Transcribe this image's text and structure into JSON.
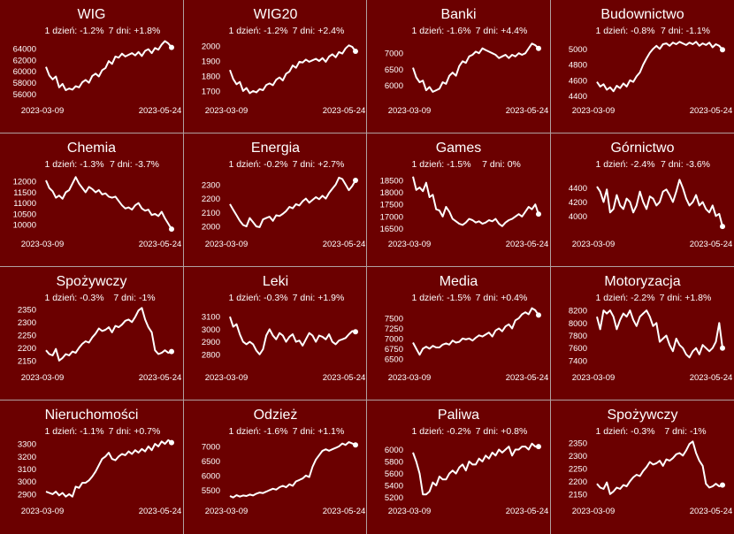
{
  "chart_data": [
    {
      "type": "line",
      "title": "WIG",
      "day_change": "1 dzień: -1.2%",
      "week_change": "7 dni: +1.8%",
      "xlabel_start": "2023-03-09",
      "xlabel_end": "2023-05-24",
      "ylim": [
        55000,
        66000
      ],
      "yticks": [
        "64000",
        "62000",
        "60000",
        "58000",
        "56000"
      ],
      "ytick_values": [
        64000,
        62000,
        60000,
        58000,
        56000
      ],
      "values": [
        60800,
        59300,
        58600,
        59100,
        57200,
        57800,
        56700,
        57000,
        56800,
        57400,
        57200,
        58100,
        58500,
        58000,
        59200,
        59600,
        59100,
        60200,
        60600,
        61800,
        61300,
        62600,
        62400,
        63100,
        62600,
        62900,
        63200,
        62800,
        63400,
        62700,
        63600,
        63900,
        63200,
        64100,
        63800,
        64700,
        65300,
        64900,
        64200
      ]
    },
    {
      "type": "line",
      "title": "WIG20",
      "day_change": "1 dzień: -1.2%",
      "week_change": "7 dni: +2.4%",
      "xlabel_start": "2023-03-09",
      "xlabel_end": "2023-05-24",
      "ylim": [
        1640,
        2060
      ],
      "yticks": [
        "2000",
        "1900",
        "1800",
        "1700"
      ],
      "ytick_values": [
        2000,
        1900,
        1800,
        1700
      ],
      "values": [
        1840,
        1780,
        1745,
        1760,
        1700,
        1720,
        1685,
        1700,
        1690,
        1712,
        1705,
        1740,
        1750,
        1738,
        1775,
        1790,
        1770,
        1815,
        1830,
        1870,
        1855,
        1895,
        1890,
        1910,
        1895,
        1905,
        1915,
        1900,
        1920,
        1895,
        1930,
        1945,
        1925,
        1960,
        1950,
        1985,
        2005,
        1995,
        1965
      ]
    },
    {
      "type": "line",
      "title": "Banki",
      "day_change": "1 dzień: -1.6%",
      "week_change": "7 dni: +4.4%",
      "xlabel_start": "2023-03-09",
      "xlabel_end": "2023-05-24",
      "ylim": [
        5550,
        7500
      ],
      "yticks": [
        "7000",
        "6500",
        "6000"
      ],
      "ytick_values": [
        7000,
        6500,
        6000
      ],
      "values": [
        6550,
        6250,
        6100,
        6150,
        5850,
        5950,
        5800,
        5850,
        5900,
        6100,
        6050,
        6300,
        6400,
        6300,
        6600,
        6750,
        6700,
        6900,
        6950,
        7050,
        7000,
        7150,
        7100,
        7050,
        7000,
        6950,
        6850,
        6900,
        6950,
        6850,
        6950,
        6900,
        7000,
        6950,
        7000,
        7150,
        7300,
        7250,
        7150
      ]
    },
    {
      "type": "line",
      "title": "Budownictwo",
      "day_change": "1 dzień: -0.8%",
      "week_change": "7 dni: -1.1%",
      "xlabel_start": "2023-03-09",
      "xlabel_end": "2023-05-24",
      "ylim": [
        4350,
        5150
      ],
      "yticks": [
        "5000",
        "4800",
        "4600",
        "4400"
      ],
      "ytick_values": [
        5000,
        4800,
        4600,
        4400
      ],
      "values": [
        4580,
        4520,
        4550,
        4480,
        4510,
        4460,
        4530,
        4500,
        4560,
        4520,
        4600,
        4580,
        4650,
        4700,
        4800,
        4880,
        4950,
        5000,
        5040,
        5000,
        5060,
        5070,
        5040,
        5080,
        5060,
        5090,
        5070,
        5050,
        5080,
        5060,
        5090,
        5040,
        5070,
        5050,
        5080,
        5020,
        5060,
        5040,
        4990
      ]
    },
    {
      "type": "line",
      "title": "Chemia",
      "day_change": "1 dzień: -1.3%",
      "week_change": "7 dni: -3.7%",
      "xlabel_start": "2023-03-09",
      "xlabel_end": "2023-05-24",
      "ylim": [
        9600,
        12500
      ],
      "yticks": [
        "12000",
        "11500",
        "11000",
        "10500",
        "10000"
      ],
      "ytick_values": [
        12000,
        11500,
        11000,
        10500,
        10000
      ],
      "values": [
        12050,
        11700,
        11550,
        11250,
        11350,
        11200,
        11500,
        11600,
        11900,
        12200,
        11900,
        11700,
        11500,
        11750,
        11650,
        11500,
        11600,
        11400,
        11450,
        11300,
        11250,
        11300,
        11100,
        10900,
        10750,
        10800,
        10700,
        10900,
        11000,
        10750,
        10650,
        10700,
        10450,
        10500,
        10400,
        10600,
        10300,
        10050,
        9800
      ]
    },
    {
      "type": "line",
      "title": "Energia",
      "day_change": "1 dzień: -0.2%",
      "week_change": "7 dni: +2.7%",
      "xlabel_start": "2023-03-09",
      "xlabel_end": "2023-05-24",
      "ylim": [
        1950,
        2400
      ],
      "yticks": [
        "2300",
        "2200",
        "2100",
        "2000"
      ],
      "ytick_values": [
        2300,
        2200,
        2100,
        2000
      ],
      "values": [
        2160,
        2120,
        2080,
        2040,
        2010,
        2000,
        2060,
        2030,
        2000,
        1995,
        2050,
        2060,
        2070,
        2040,
        2080,
        2075,
        2090,
        2110,
        2140,
        2130,
        2160,
        2150,
        2180,
        2200,
        2170,
        2190,
        2210,
        2195,
        2220,
        2200,
        2240,
        2270,
        2300,
        2350,
        2340,
        2300,
        2260,
        2290,
        2330
      ]
    },
    {
      "type": "line",
      "title": "Games",
      "day_change": "1 dzień: -1.5%",
      "week_change": "7 dni: 0%",
      "xlabel_start": "2023-03-09",
      "xlabel_end": "2023-05-24",
      "ylim": [
        16300,
        18900
      ],
      "yticks": [
        "18500",
        "18000",
        "17500",
        "17000",
        "16500"
      ],
      "ytick_values": [
        18500,
        18000,
        17500,
        17000,
        16500
      ],
      "values": [
        18650,
        18100,
        18200,
        18050,
        18400,
        17800,
        17900,
        17300,
        17250,
        17000,
        17400,
        17200,
        16900,
        16800,
        16700,
        16650,
        16750,
        16900,
        16850,
        16750,
        16800,
        16700,
        16750,
        16850,
        16800,
        16900,
        16700,
        16600,
        16750,
        16850,
        16900,
        17000,
        17100,
        17000,
        17200,
        17400,
        17300,
        17500,
        17100
      ]
    },
    {
      "type": "line",
      "title": "Górnictwo",
      "day_change": "1 dzień: -2.4%",
      "week_change": "7 dni: -3.6%",
      "xlabel_start": "2023-03-09",
      "xlabel_end": "2023-05-24",
      "ylim": [
        3750,
        4650
      ],
      "yticks": [
        "4400",
        "4200",
        "4000"
      ],
      "ytick_values": [
        4400,
        4200,
        4000
      ],
      "values": [
        4420,
        4350,
        4200,
        4380,
        4050,
        4100,
        4300,
        4150,
        4100,
        4250,
        4200,
        4050,
        4150,
        4350,
        4200,
        4100,
        4280,
        4250,
        4150,
        4200,
        4350,
        4380,
        4300,
        4200,
        4350,
        4520,
        4400,
        4250,
        4150,
        4200,
        4300,
        4150,
        4200,
        4100,
        4050,
        4150,
        4000,
        4030,
        3850
      ]
    },
    {
      "type": "line",
      "title": "Spożywczy",
      "day_change": "1 dzień: -0.3%",
      "week_change": "7 dni: -1%",
      "xlabel_start": "2023-03-09",
      "xlabel_end": "2023-05-24",
      "ylim": [
        2125,
        2370
      ],
      "yticks": [
        "2350",
        "2300",
        "2250",
        "2200",
        "2150"
      ],
      "ytick_values": [
        2350,
        2300,
        2250,
        2200,
        2150
      ],
      "values": [
        2190,
        2175,
        2170,
        2195,
        2150,
        2160,
        2175,
        2170,
        2185,
        2180,
        2200,
        2215,
        2225,
        2220,
        2240,
        2255,
        2275,
        2265,
        2270,
        2280,
        2260,
        2285,
        2280,
        2290,
        2305,
        2310,
        2300,
        2320,
        2345,
        2355,
        2310,
        2280,
        2260,
        2190,
        2175,
        2180,
        2190,
        2180,
        2185
      ]
    },
    {
      "type": "line",
      "title": "Leki",
      "day_change": "1 dzień: -0.3%",
      "week_change": "7 dni: +1.9%",
      "xlabel_start": "2023-03-09",
      "xlabel_end": "2023-05-24",
      "ylim": [
        2700,
        3200
      ],
      "yticks": [
        "3100",
        "3000",
        "2900",
        "2800"
      ],
      "ytick_values": [
        3100,
        3000,
        2900,
        2800
      ],
      "values": [
        3100,
        3020,
        3040,
        2960,
        2900,
        2880,
        2900,
        2880,
        2830,
        2800,
        2840,
        2950,
        3000,
        2950,
        2920,
        2970,
        2950,
        2900,
        2940,
        2960,
        2900,
        2910,
        2870,
        2920,
        2970,
        2950,
        2900,
        2950,
        2940,
        2920,
        2960,
        2900,
        2880,
        2910,
        2920,
        2930,
        2960,
        2985,
        2980
      ]
    },
    {
      "type": "line",
      "title": "Media",
      "day_change": "1 dzień: -1.5%",
      "week_change": "7 dni: +0.4%",
      "xlabel_start": "2023-03-09",
      "xlabel_end": "2023-05-24",
      "ylim": [
        6300,
        7850
      ],
      "yticks": [
        "7500",
        "7250",
        "7000",
        "6750",
        "6500"
      ],
      "ytick_values": [
        7500,
        7250,
        7000,
        6750,
        6500
      ],
      "values": [
        6900,
        6750,
        6600,
        6750,
        6800,
        6750,
        6820,
        6780,
        6780,
        6850,
        6880,
        6850,
        6950,
        6900,
        6920,
        7000,
        6980,
        7000,
        6950,
        7020,
        7080,
        7050,
        7100,
        7150,
        7050,
        7200,
        7250,
        7180,
        7300,
        7350,
        7250,
        7450,
        7500,
        7600,
        7650,
        7600,
        7750,
        7700,
        7580
      ]
    },
    {
      "type": "line",
      "title": "Motoryzacja",
      "day_change": "1 dzień: -2.2%",
      "week_change": "7 dni: +1.8%",
      "xlabel_start": "2023-03-09",
      "xlabel_end": "2023-05-24",
      "ylim": [
        7300,
        8300
      ],
      "yticks": [
        "8200",
        "8000",
        "7800",
        "7600",
        "7400"
      ],
      "ytick_values": [
        8200,
        8000,
        7800,
        7600,
        7400
      ],
      "values": [
        8100,
        7900,
        8200,
        8150,
        8200,
        8100,
        7900,
        8050,
        8150,
        8100,
        8200,
        8050,
        7950,
        8100,
        8150,
        8200,
        8100,
        7950,
        8000,
        7700,
        7750,
        7800,
        7650,
        7550,
        7750,
        7650,
        7600,
        7500,
        7450,
        7550,
        7600,
        7500,
        7650,
        7600,
        7550,
        7600,
        7700,
        8000,
        7600
      ]
    },
    {
      "type": "line",
      "title": "Nieruchomości",
      "day_change": "1 dzień: -1.1%",
      "week_change": "7 dni: +0.7%",
      "xlabel_start": "2023-03-09",
      "xlabel_end": "2023-05-24",
      "ylim": [
        2850,
        3350
      ],
      "yticks": [
        "3300",
        "3200",
        "3100",
        "3000",
        "2900"
      ],
      "ytick_values": [
        3300,
        3200,
        3100,
        3000,
        2900
      ],
      "values": [
        2920,
        2910,
        2900,
        2920,
        2890,
        2910,
        2880,
        2900,
        2880,
        2960,
        2950,
        2990,
        2990,
        3010,
        3040,
        3080,
        3130,
        3180,
        3200,
        3230,
        3180,
        3170,
        3200,
        3220,
        3210,
        3240,
        3220,
        3250,
        3230,
        3260,
        3240,
        3280,
        3250,
        3300,
        3280,
        3320,
        3300,
        3330,
        3310
      ]
    },
    {
      "type": "line",
      "title": "Odzież",
      "day_change": "1 dzień: -1.6%",
      "week_change": "7 dni: +1.1%",
      "xlabel_start": "2023-03-09",
      "xlabel_end": "2023-05-24",
      "ylim": [
        5150,
        7300
      ],
      "yticks": [
        "7000",
        "6500",
        "6000",
        "5500"
      ],
      "ytick_values": [
        7000,
        6500,
        6000,
        5500
      ],
      "values": [
        5300,
        5250,
        5330,
        5280,
        5320,
        5300,
        5350,
        5320,
        5380,
        5420,
        5400,
        5450,
        5500,
        5550,
        5520,
        5600,
        5650,
        5600,
        5700,
        5650,
        5800,
        5850,
        5900,
        6000,
        5950,
        6300,
        6550,
        6700,
        6850,
        6900,
        6850,
        6900,
        6950,
        7000,
        7100,
        7050,
        7150,
        7100,
        7050
      ]
    },
    {
      "type": "line",
      "title": "Paliwa",
      "day_change": "1 dzień: -0.2%",
      "week_change": "7 dni: +0.8%",
      "xlabel_start": "2023-03-09",
      "xlabel_end": "2023-05-24",
      "ylim": [
        5150,
        6200
      ],
      "yticks": [
        "6000",
        "5800",
        "5600",
        "5400",
        "5200"
      ],
      "ytick_values": [
        6000,
        5800,
        5600,
        5400,
        5200
      ],
      "values": [
        5950,
        5800,
        5600,
        5250,
        5250,
        5300,
        5450,
        5400,
        5550,
        5500,
        5500,
        5600,
        5650,
        5600,
        5700,
        5750,
        5650,
        5800,
        5750,
        5750,
        5850,
        5800,
        5900,
        5850,
        5950,
        5900,
        6000,
        5950,
        6000,
        6050,
        5900,
        6000,
        6000,
        6050,
        6050,
        6000,
        6100,
        6050,
        6050
      ]
    },
    {
      "type": "line",
      "title": "Spożywczy",
      "day_change": "1 dzień: -0.3%",
      "week_change": "7 dni: -1%",
      "xlabel_start": "2023-03-09",
      "xlabel_end": "2023-05-24",
      "ylim": [
        2125,
        2370
      ],
      "yticks": [
        "2350",
        "2300",
        "2250",
        "2200",
        "2150"
      ],
      "ytick_values": [
        2350,
        2300,
        2250,
        2200,
        2150
      ],
      "values": [
        2190,
        2175,
        2170,
        2195,
        2150,
        2160,
        2175,
        2170,
        2185,
        2180,
        2200,
        2215,
        2225,
        2220,
        2240,
        2255,
        2275,
        2265,
        2270,
        2280,
        2260,
        2285,
        2280,
        2290,
        2305,
        2310,
        2300,
        2320,
        2345,
        2355,
        2310,
        2280,
        2260,
        2190,
        2175,
        2180,
        2190,
        2180,
        2185
      ]
    }
  ]
}
